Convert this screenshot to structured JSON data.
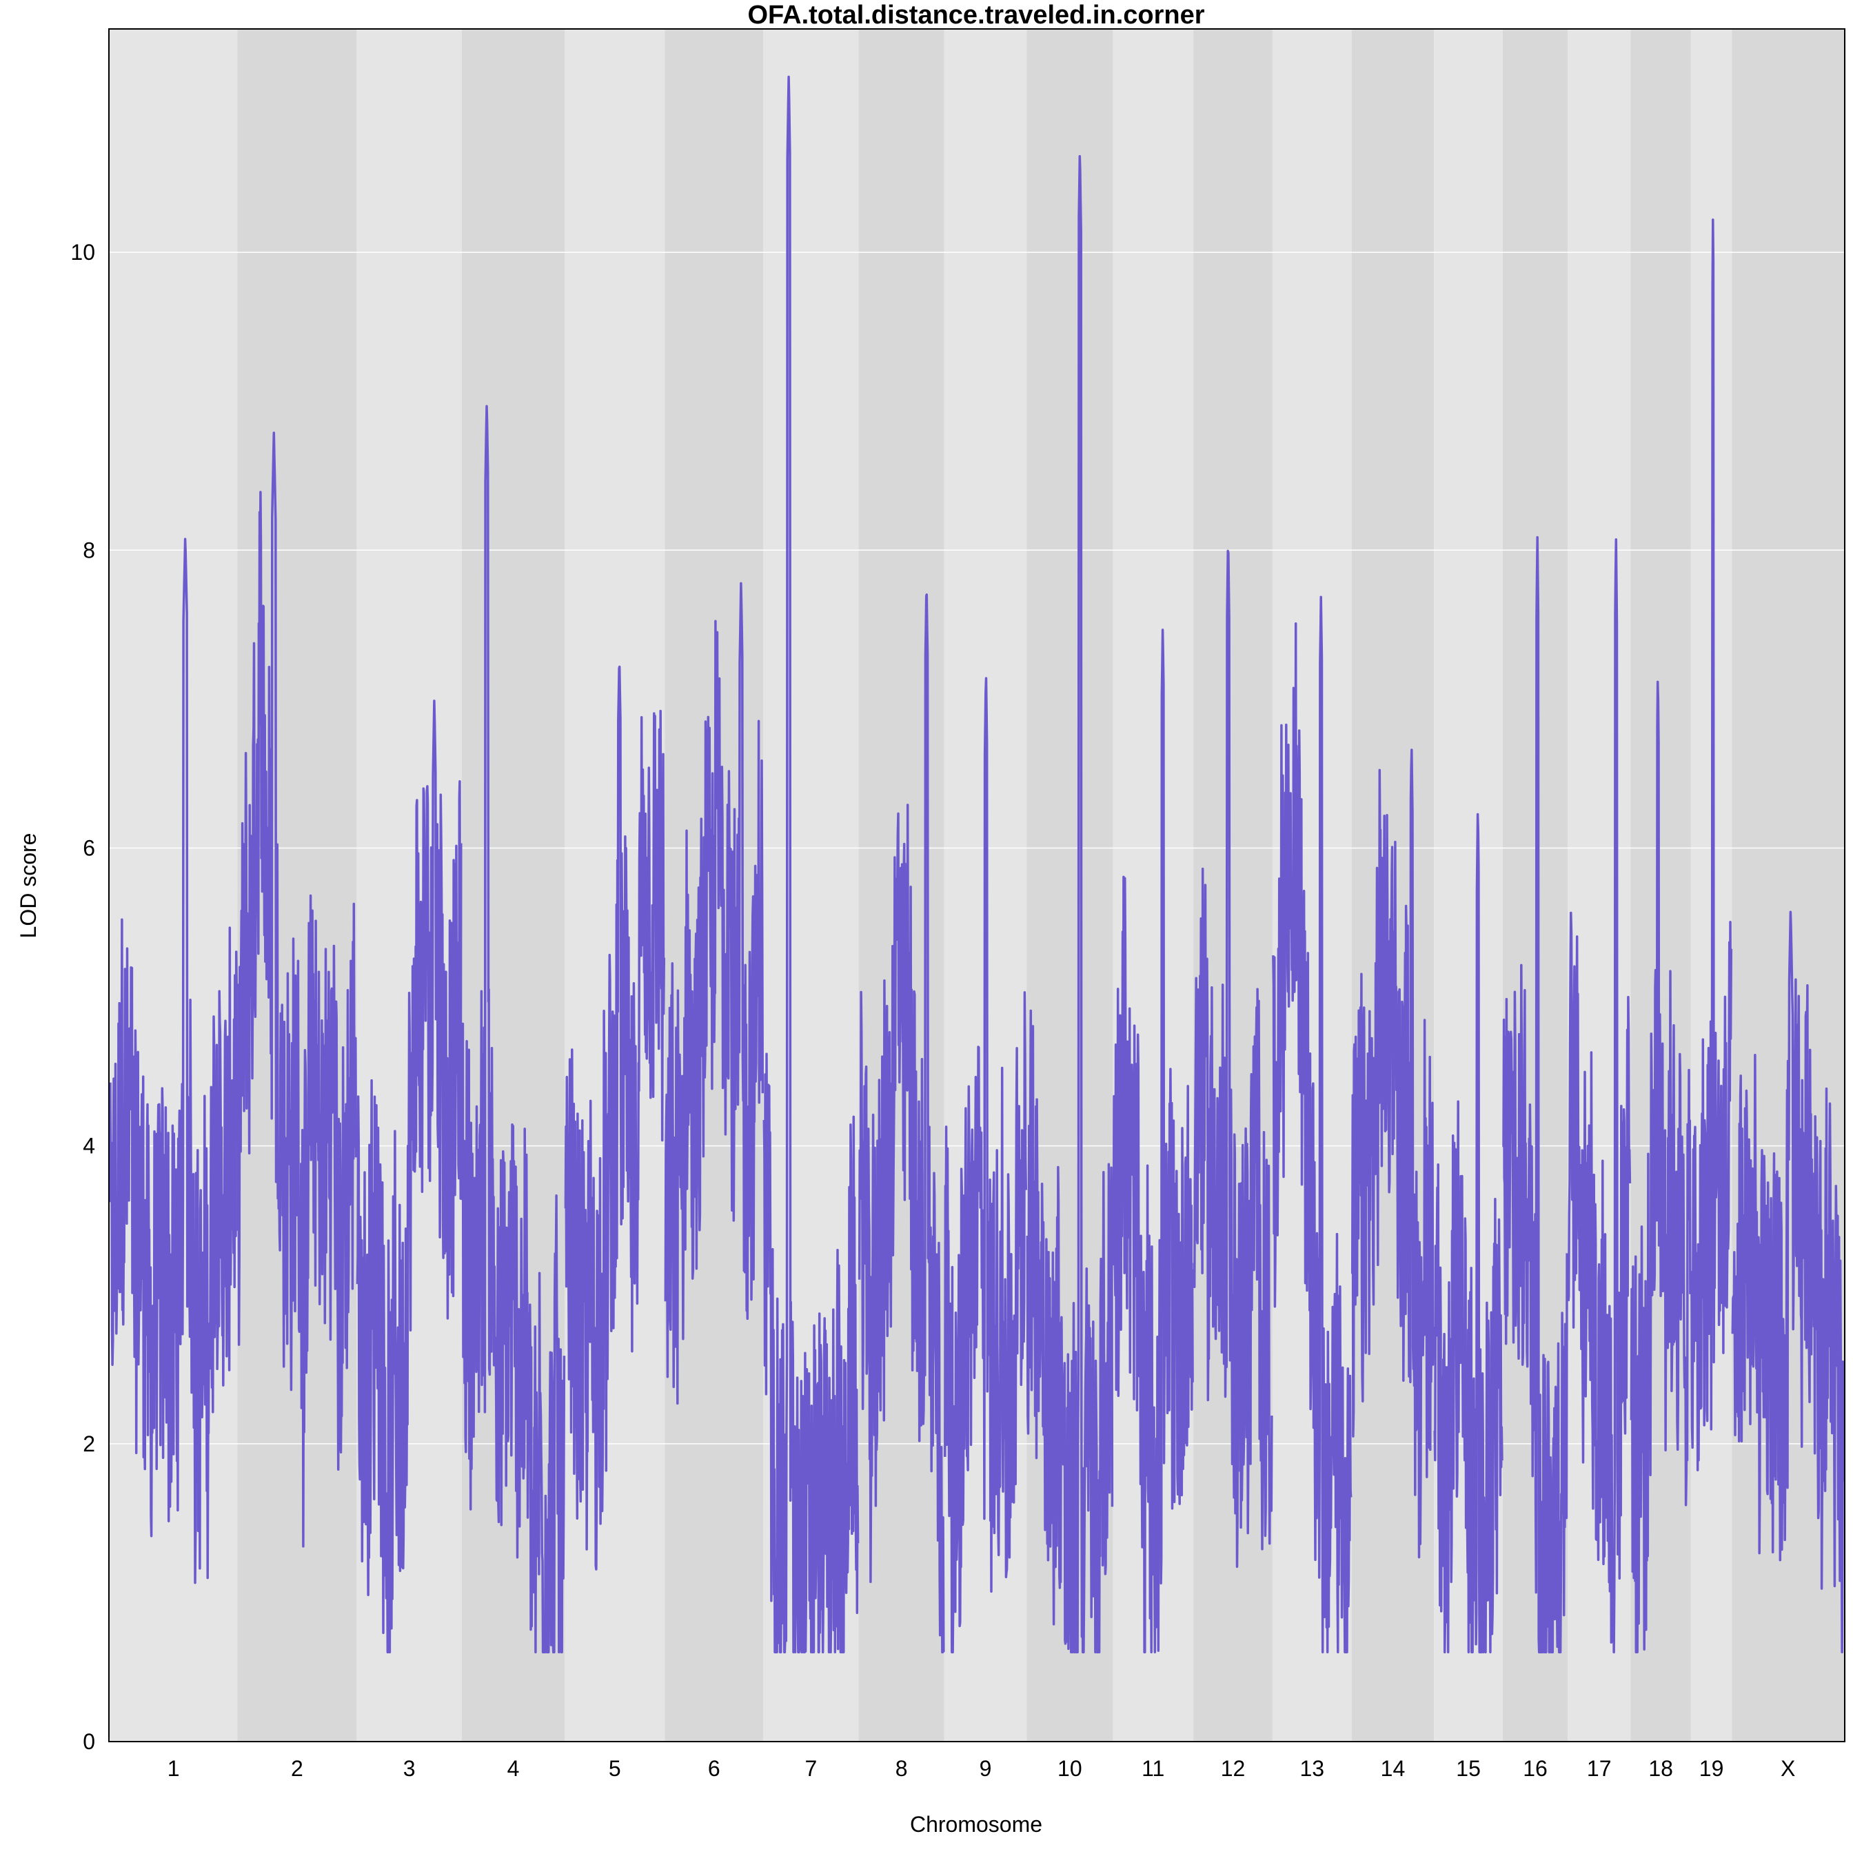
{
  "chart_data": {
    "type": "line",
    "title": "OFA.total.distance.traveled.in.corner",
    "xlabel": "Chromosome",
    "ylabel": "LOD score",
    "ylim": [
      0,
      11.5
    ],
    "yticks": [
      0,
      2,
      4,
      6,
      8,
      10
    ],
    "grid": true,
    "colors": {
      "line": "#6a5acd",
      "band_light": "#e5e5e5",
      "band_dark": "#d8d8d8",
      "gridline": "#ffffff",
      "frame": "#000000"
    },
    "chromosomes": [
      {
        "label": "1",
        "length": 195,
        "max": 8.1
      },
      {
        "label": "2",
        "length": 182,
        "max": 8.8
      },
      {
        "label": "3",
        "length": 160,
        "max": 7.0
      },
      {
        "label": "4",
        "length": 157,
        "max": 9.0
      },
      {
        "label": "5",
        "length": 152,
        "max": 7.3
      },
      {
        "label": "6",
        "length": 150,
        "max": 7.8
      },
      {
        "label": "7",
        "length": 145,
        "max": 11.2
      },
      {
        "label": "8",
        "length": 130,
        "max": 7.8
      },
      {
        "label": "9",
        "length": 125,
        "max": 7.2
      },
      {
        "label": "10",
        "length": 131,
        "max": 10.7
      },
      {
        "label": "11",
        "length": 122,
        "max": 7.5
      },
      {
        "label": "12",
        "length": 120,
        "max": 8.1
      },
      {
        "label": "13",
        "length": 120,
        "max": 7.7
      },
      {
        "label": "14",
        "length": 125,
        "max": 6.7
      },
      {
        "label": "15",
        "length": 104,
        "max": 6.3
      },
      {
        "label": "16",
        "length": 98,
        "max": 8.1
      },
      {
        "label": "17",
        "length": 95,
        "max": 8.1
      },
      {
        "label": "18",
        "length": 91,
        "max": 7.2
      },
      {
        "label": "19",
        "length": 61,
        "max": 10.3
      },
      {
        "label": "X",
        "length": 171,
        "max": 5.6
      }
    ]
  }
}
